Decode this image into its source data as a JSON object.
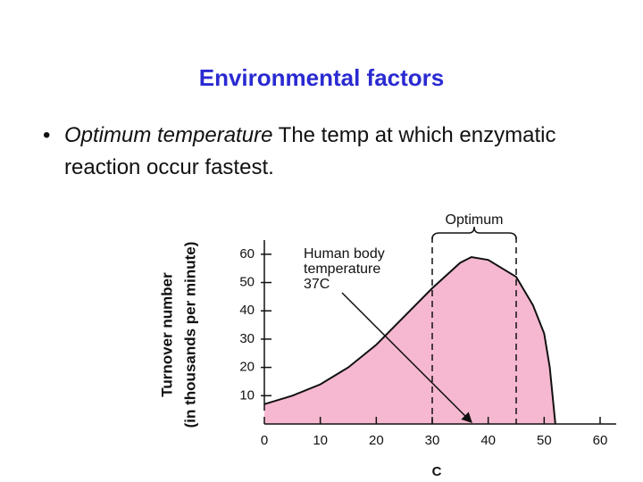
{
  "slide": {
    "title": "Environmental factors",
    "bullet": {
      "lead": "Optimum temperature",
      "text": "The temp at which enzymatic reaction occur fastest."
    }
  },
  "chart_data": {
    "type": "area",
    "y_label": [
      "Turnover number",
      "(in thousands per minute)"
    ],
    "x_label": "C",
    "x": [
      0,
      5,
      10,
      15,
      20,
      25,
      30,
      35,
      37,
      40,
      45,
      48,
      50,
      51,
      52
    ],
    "series": [
      {
        "color": "#f6b8d1",
        "values": [
          7,
          10,
          14,
          20,
          28,
          38,
          48,
          57,
          59,
          58,
          52,
          42,
          32,
          20,
          0
        ]
      }
    ],
    "xlim": [
      0,
      60
    ],
    "ylim": [
      0,
      65
    ],
    "xticks": [
      0,
      10,
      20,
      30,
      40,
      50,
      60
    ],
    "yticks": [
      10,
      20,
      30,
      40,
      50,
      60
    ],
    "optimum": {
      "label": "Optimum",
      "range": [
        30,
        45
      ]
    },
    "annotation": {
      "lines": [
        "Human body",
        "temperature",
        "37C"
      ],
      "x": 37
    }
  }
}
